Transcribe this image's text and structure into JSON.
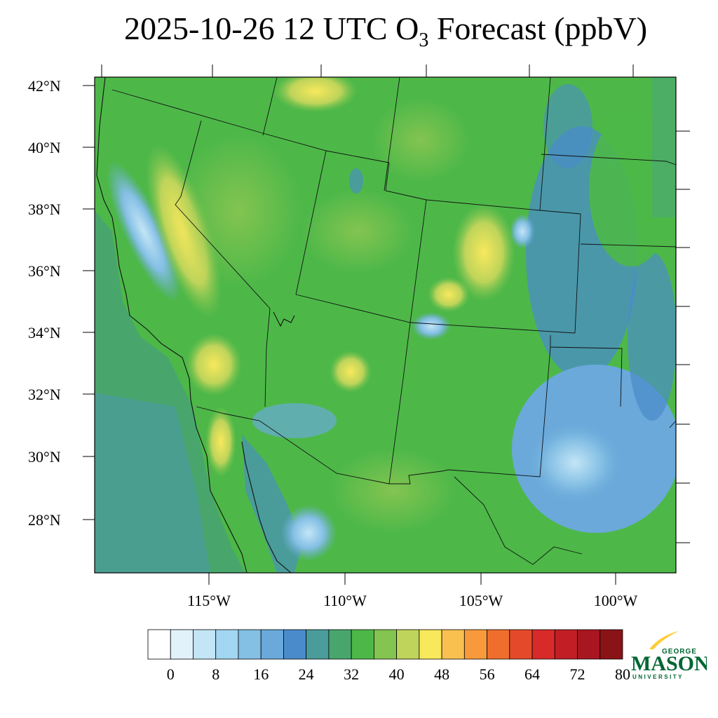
{
  "title": {
    "prefix": "2025-10-26 12 UTC O",
    "subscript": "3",
    "suffix": " Forecast (ppbV)"
  },
  "map": {
    "lat_labels": [
      "42°N",
      "40°N",
      "38°N",
      "36°N",
      "34°N",
      "32°N",
      "30°N",
      "28°N"
    ],
    "lon_labels": [
      "115°W",
      "110°W",
      "105°W",
      "100°W"
    ]
  },
  "colorbar": {
    "labels": [
      "0",
      "8",
      "16",
      "24",
      "32",
      "40",
      "48",
      "56",
      "64",
      "72",
      "80"
    ],
    "colors": [
      "#ffffff",
      "#e2f2fb",
      "#c3e5f6",
      "#a2d6f2",
      "#84bfe4",
      "#6aa9da",
      "#4a8ccb",
      "#4a9c9a",
      "#48a66c",
      "#4db848",
      "#84c451",
      "#bed45a",
      "#f8e85c",
      "#f9c050",
      "#f89a3b",
      "#f06e2c",
      "#e44a29",
      "#d92a2a",
      "#c21e26",
      "#a8171f",
      "#8a1318"
    ]
  },
  "logo": {
    "line1": "GEORGE",
    "line2": "MASON",
    "line3": "UNIVERSITY",
    "brand_green": "#006633",
    "brand_gold": "#ffcc33"
  }
}
